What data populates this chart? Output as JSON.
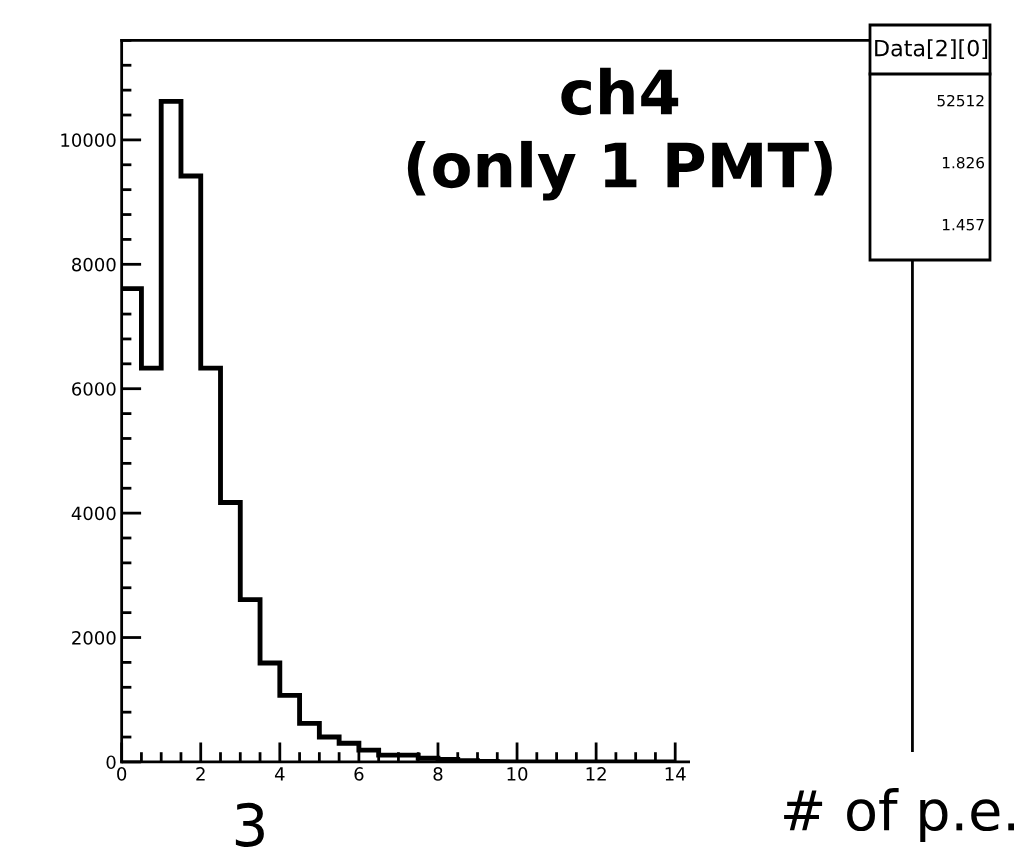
{
  "chart_data": {
    "type": "histogram",
    "color": "#000000",
    "bins": [
      0,
      0.5,
      1,
      1.5,
      2,
      2.5,
      3,
      3.5,
      4,
      4.5,
      5,
      5.5,
      6,
      6.5,
      7,
      7.5,
      8,
      8.5,
      9,
      9.5,
      10,
      10.5,
      11,
      11.5,
      12,
      12.5,
      13,
      13.5,
      14
    ],
    "values": [
      7610,
      6330,
      10620,
      9420,
      6330,
      4170,
      2610,
      1590,
      1070,
      620,
      400,
      300,
      190,
      110,
      110,
      60,
      40,
      20,
      10,
      0,
      0,
      0,
      0,
      0,
      0,
      0,
      0,
      0
    ],
    "xlim": [
      0,
      20
    ],
    "ylim": [
      0,
      11600
    ],
    "xticks": [
      0,
      2,
      4,
      6,
      8,
      10,
      12,
      14
    ],
    "yticks": [
      0,
      2000,
      4000,
      6000,
      8000,
      10000
    ],
    "xlabel": "# of p.e.",
    "title": "ch4\n(only 1 PMT)",
    "annotations": [
      "3",
      "Data[2][0]",
      "52512",
      "1.826",
      "1.457"
    ],
    "grid": false
  }
}
